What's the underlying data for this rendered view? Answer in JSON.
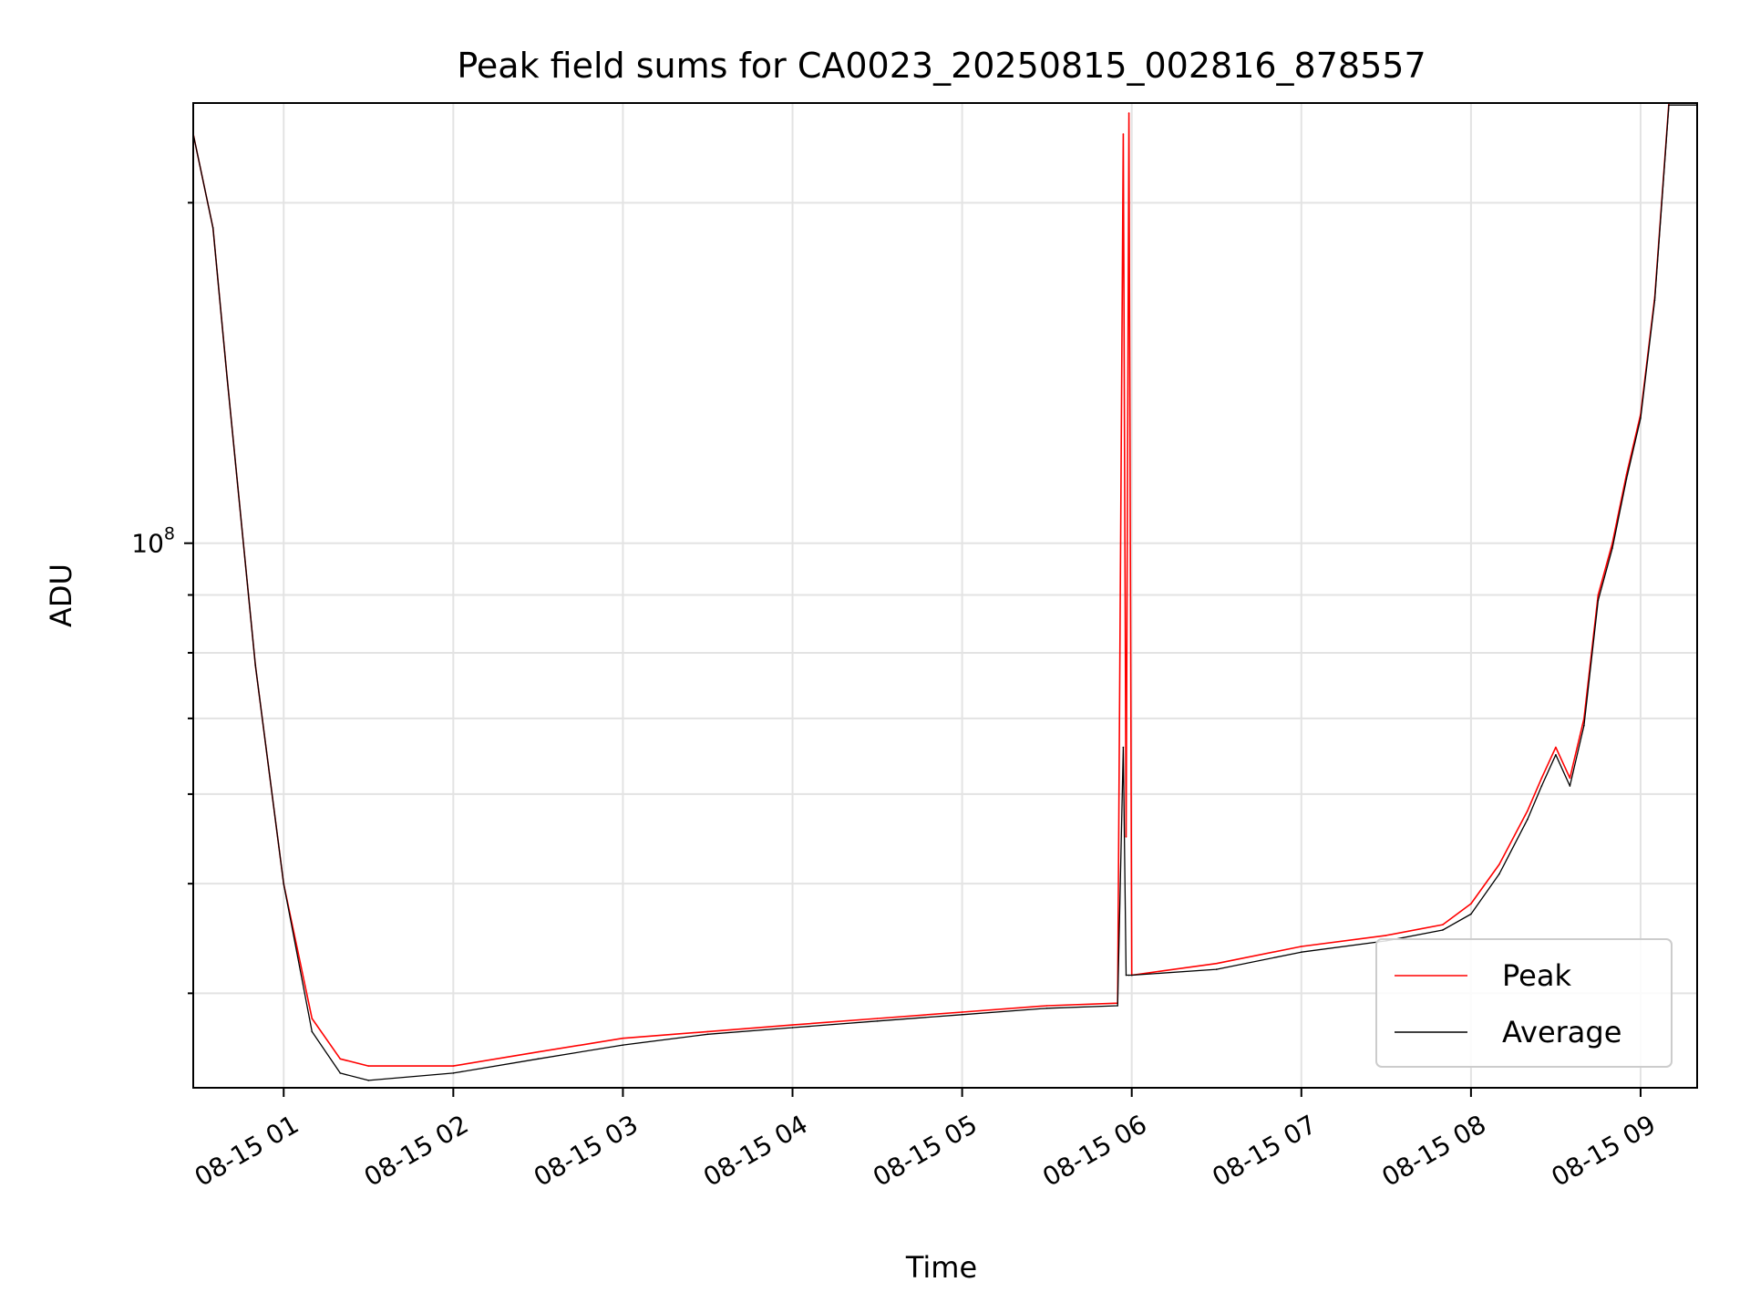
{
  "chart_data": {
    "type": "line",
    "title": "Peak field sums for CA0023_20250815_002816_878557",
    "xlabel": "Time",
    "ylabel": "ADU",
    "y_scale": "log",
    "grid": true,
    "legend_placement": "lower-right",
    "xlim": [
      "08-15 00:28",
      "08-15 09:20"
    ],
    "ylim": [
      33000000,
      245000000
    ],
    "x_ticks": [
      "08-15 01",
      "08-15 02",
      "08-15 03",
      "08-15 04",
      "08-15 05",
      "08-15 06",
      "08-15 07",
      "08-15 08",
      "08-15 09"
    ],
    "y_tick_major": {
      "base": "10",
      "exp": "8"
    },
    "series": [
      {
        "name": "Peak",
        "color": "#ff0000",
        "x": [
          "08-15 00:28",
          "08-15 00:35",
          "00:40",
          "00:50",
          "01:00",
          "01:10",
          "01:20",
          "01:30",
          "02:00",
          "02:30",
          "03:00",
          "03:30",
          "04:00",
          "04:30",
          "05:00",
          "05:30",
          "05:55",
          "05:57",
          "05:58",
          "05:59",
          "06:00",
          "06:30",
          "07:00",
          "07:30",
          "07:50",
          "08:00",
          "08:10",
          "08:20",
          "08:25",
          "08:30",
          "08:35",
          "08:40",
          "08:45",
          "08:50",
          "08:55",
          "09:00",
          "09:05",
          "09:10",
          "09:20"
        ],
        "values": [
          230000000,
          190000000,
          140000000,
          78000000,
          50000000,
          38000000,
          35000000,
          34500000,
          34500000,
          35500000,
          36500000,
          37000000,
          37500000,
          38000000,
          38500000,
          39000000,
          39200000,
          230000000,
          55000000,
          240000000,
          41500000,
          42500000,
          44000000,
          45000000,
          46000000,
          48000000,
          52000000,
          58000000,
          62000000,
          66000000,
          62000000,
          70000000,
          90000000,
          100000000,
          115000000,
          130000000,
          165000000,
          245000000,
          245000000
        ]
      },
      {
        "name": "Average",
        "color": "#000000",
        "x": [
          "08-15 00:28",
          "08-15 00:35",
          "00:40",
          "00:50",
          "01:00",
          "01:10",
          "01:20",
          "01:30",
          "02:00",
          "02:30",
          "03:00",
          "03:30",
          "04:00",
          "04:30",
          "05:00",
          "05:30",
          "05:55",
          "05:57",
          "05:58",
          "05:59",
          "06:00",
          "06:30",
          "07:00",
          "07:30",
          "07:50",
          "08:00",
          "08:10",
          "08:20",
          "08:25",
          "08:30",
          "08:35",
          "08:40",
          "08:45",
          "08:50",
          "08:55",
          "09:00",
          "09:05",
          "09:10",
          "09:20"
        ],
        "values": [
          230000000,
          190000000,
          140000000,
          78000000,
          50000000,
          37000000,
          34000000,
          33500000,
          34000000,
          35000000,
          36000000,
          36800000,
          37300000,
          37800000,
          38300000,
          38800000,
          39000000,
          66000000,
          41500000,
          41500000,
          41500000,
          42000000,
          43500000,
          44500000,
          45500000,
          47000000,
          51000000,
          57000000,
          61000000,
          65000000,
          61000000,
          69000000,
          89000000,
          99000000,
          114000000,
          129000000,
          164000000,
          244000000,
          244000000
        ]
      }
    ]
  }
}
